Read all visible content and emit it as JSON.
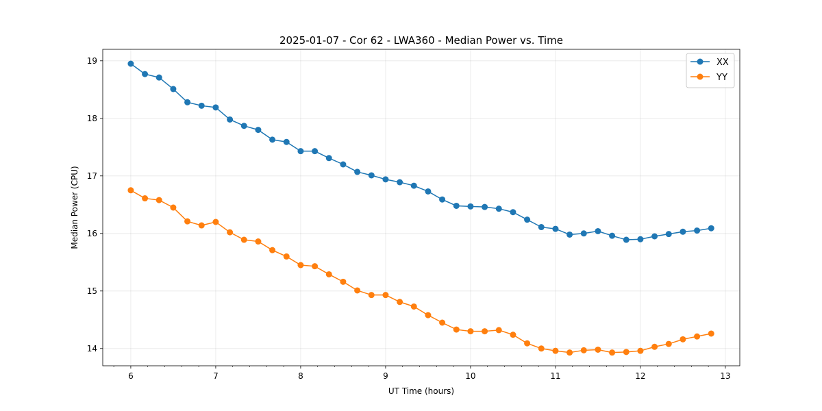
{
  "chart_data": {
    "type": "line",
    "title": "2025-01-07 - Cor 62 - LWA360 - Median Power vs. Time",
    "xlabel": "UT Time (hours)",
    "ylabel": "Median Power (CPU)",
    "xlim": [
      5.67,
      13.17
    ],
    "ylim": [
      13.7,
      19.2
    ],
    "xticks": [
      6,
      7,
      8,
      9,
      10,
      11,
      12,
      13
    ],
    "xtick_labels": [
      "6",
      "7",
      "8",
      "9",
      "10",
      "11",
      "12",
      "13"
    ],
    "yticks": [
      14,
      15,
      16,
      17,
      18,
      19
    ],
    "ytick_labels": [
      "14",
      "15",
      "16",
      "17",
      "18",
      "19"
    ],
    "grid": true,
    "legend_position": "top-right",
    "x": [
      6.0,
      6.1667,
      6.3333,
      6.5,
      6.6667,
      6.8333,
      7.0,
      7.1667,
      7.3333,
      7.5,
      7.6667,
      7.8333,
      8.0,
      8.1667,
      8.3333,
      8.5,
      8.6667,
      8.8333,
      9.0,
      9.1667,
      9.3333,
      9.5,
      9.6667,
      9.8333,
      10.0,
      10.1667,
      10.3333,
      10.5,
      10.6667,
      10.8333,
      11.0,
      11.1667,
      11.3333,
      11.5,
      11.6667,
      11.8333,
      12.0,
      12.1667,
      12.3333,
      12.5,
      12.6667,
      12.8333
    ],
    "series": [
      {
        "name": "XX",
        "color": "#1f77b4",
        "values": [
          18.95,
          18.77,
          18.71,
          18.51,
          18.28,
          18.22,
          18.19,
          17.98,
          17.87,
          17.8,
          17.63,
          17.59,
          17.43,
          17.43,
          17.31,
          17.2,
          17.07,
          17.01,
          16.94,
          16.89,
          16.83,
          16.73,
          16.59,
          16.48,
          16.47,
          16.46,
          16.43,
          16.37,
          16.24,
          16.11,
          16.08,
          15.98,
          16.0,
          16.04,
          15.96,
          15.89,
          15.9,
          15.95,
          15.99,
          16.03,
          16.05,
          16.09
        ]
      },
      {
        "name": "YY",
        "color": "#ff7f0e",
        "values": [
          16.75,
          16.61,
          16.58,
          16.45,
          16.21,
          16.14,
          16.2,
          16.02,
          15.89,
          15.86,
          15.71,
          15.6,
          15.45,
          15.43,
          15.29,
          15.16,
          15.01,
          14.93,
          14.93,
          14.81,
          14.73,
          14.58,
          14.45,
          14.33,
          14.3,
          14.3,
          14.32,
          14.24,
          14.09,
          14.0,
          13.96,
          13.93,
          13.97,
          13.98,
          13.93,
          13.94,
          13.96,
          14.03,
          14.08,
          14.16,
          14.21,
          14.26
        ]
      }
    ]
  }
}
